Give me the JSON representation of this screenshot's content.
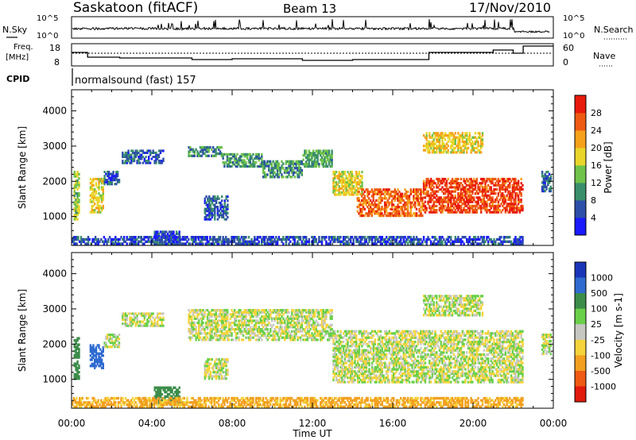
{
  "header": {
    "station": "Saskatoon (fitACF)",
    "beam": "Beam 13",
    "date": "17/Nov/2010"
  },
  "top_panels": {
    "nsky_label": "N.Sky",
    "nsearch_label": "N.Search",
    "noise_ticks_left": [
      "10^5",
      "10^0"
    ],
    "noise_ticks_right": [
      "10^5",
      "10^0"
    ],
    "freq_label": "Freq.",
    "freq_unit": "[MHz]",
    "freq_ticks": [
      "18",
      "8"
    ],
    "nave_label": "Nave",
    "nave_ticks": [
      "60",
      "0"
    ],
    "cpid_label": "CPID",
    "cpid_text": "normalsound (fast) 157"
  },
  "chart_data": [
    {
      "type": "heatmap",
      "title": "",
      "xlabel": "Time UT",
      "ylabel": "Slant Range [km]",
      "x_ticks": [
        "00:00",
        "04:00",
        "08:00",
        "12:00",
        "16:00",
        "20:00",
        "00:00"
      ],
      "y_ticks": [
        "1000",
        "2000",
        "3000",
        "4000"
      ],
      "xlim_hours": [
        0,
        24
      ],
      "ylim_km": [
        180,
        4600
      ],
      "colorbar": {
        "label": "Power [dB]",
        "ticks": [
          "4",
          "8",
          "12",
          "16",
          "20",
          "24",
          "28"
        ],
        "range": [
          0,
          30
        ]
      },
      "bands": [
        {
          "t0": 0.1,
          "t1": 0.4,
          "r0": 900,
          "r1": 2300,
          "v": 14
        },
        {
          "t0": 0.9,
          "t1": 1.6,
          "r0": 1100,
          "r1": 2100,
          "v": 17
        },
        {
          "t0": 1.6,
          "t1": 2.4,
          "r0": 1900,
          "r1": 2300,
          "v": 6
        },
        {
          "t0": 2.5,
          "t1": 4.6,
          "r0": 2500,
          "r1": 2900,
          "v": 6
        },
        {
          "t0": 4.1,
          "t1": 5.4,
          "r0": 200,
          "r1": 600,
          "v": 5
        },
        {
          "t0": 5.8,
          "t1": 7.5,
          "r0": 2700,
          "r1": 3000,
          "v": 9
        },
        {
          "t0": 6.6,
          "t1": 7.8,
          "r0": 900,
          "r1": 1600,
          "v": 6
        },
        {
          "t0": 7.5,
          "t1": 9.5,
          "r0": 2400,
          "r1": 2800,
          "v": 10
        },
        {
          "t0": 9.5,
          "t1": 11.5,
          "r0": 2100,
          "r1": 2600,
          "v": 10
        },
        {
          "t0": 11.5,
          "t1": 13.0,
          "r0": 2400,
          "r1": 2900,
          "v": 11
        },
        {
          "t0": 13.0,
          "t1": 14.5,
          "r0": 1600,
          "r1": 2300,
          "v": 17
        },
        {
          "t0": 14.2,
          "t1": 17.5,
          "r0": 1000,
          "r1": 1800,
          "v": 24
        },
        {
          "t0": 17.5,
          "t1": 22.5,
          "r0": 1100,
          "r1": 2100,
          "v": 26
        },
        {
          "t0": 17.5,
          "t1": 20.5,
          "r0": 2800,
          "r1": 3400,
          "v": 18
        },
        {
          "t0": 0.0,
          "t1": 22.5,
          "r0": 200,
          "r1": 450,
          "v": 5
        },
        {
          "t0": 23.4,
          "t1": 23.9,
          "r0": 1700,
          "r1": 2300,
          "v": 7
        }
      ]
    },
    {
      "type": "heatmap",
      "title": "",
      "xlabel": "Time UT",
      "ylabel": "Slant Range [km]",
      "x_ticks": [
        "00:00",
        "04:00",
        "08:00",
        "12:00",
        "16:00",
        "20:00",
        "00:00"
      ],
      "y_ticks": [
        "1000",
        "2000",
        "3000",
        "4000"
      ],
      "xlim_hours": [
        0,
        24
      ],
      "ylim_km": [
        180,
        4600
      ],
      "colorbar": {
        "label": "Velocity [m s-1]",
        "ticks": [
          "1000",
          "500",
          "100",
          "25",
          "-25",
          "-100",
          "-500",
          "-1000"
        ],
        "range": [
          -1000,
          1000
        ]
      },
      "bands": [
        {
          "t0": 0.1,
          "t1": 0.4,
          "r0": 1000,
          "r1": 2200,
          "v": 300
        },
        {
          "t0": 0.9,
          "t1": 1.6,
          "r0": 1300,
          "r1": 2000,
          "v": 700
        },
        {
          "t0": 1.6,
          "t1": 2.4,
          "r0": 1900,
          "r1": 2300,
          "v": 0
        },
        {
          "t0": 2.5,
          "t1": 4.6,
          "r0": 2500,
          "r1": 2900,
          "v": 0
        },
        {
          "t0": 4.1,
          "t1": 5.4,
          "r0": 300,
          "r1": 800,
          "v": 200
        },
        {
          "t0": 5.8,
          "t1": 13.0,
          "r0": 2100,
          "r1": 3000,
          "v": 0
        },
        {
          "t0": 6.6,
          "t1": 7.8,
          "r0": 1000,
          "r1": 1600,
          "v": 0
        },
        {
          "t0": 13.0,
          "t1": 22.5,
          "r0": 900,
          "r1": 2400,
          "v": 0
        },
        {
          "t0": 17.5,
          "t1": 20.5,
          "r0": 2800,
          "r1": 3400,
          "v": 0
        },
        {
          "t0": 0.0,
          "t1": 22.5,
          "r0": 200,
          "r1": 500,
          "v": -150
        },
        {
          "t0": 23.4,
          "t1": 23.9,
          "r0": 1700,
          "r1": 2300,
          "v": 0
        }
      ]
    }
  ],
  "colors": {
    "power": [
      "#1a1aff",
      "#2e4fa8",
      "#3a8f6a",
      "#6fc24a",
      "#e9d62a",
      "#f6a11a",
      "#ee5a12",
      "#e81a0c"
    ],
    "velocity_pos": [
      "#1a36b8",
      "#2f6bd0",
      "#3c8d4a",
      "#6ad04a"
    ],
    "velocity_zero": "#c7c7c2",
    "velocity_neg": [
      "#f4d43a",
      "#f2a020",
      "#ef5a14",
      "#e11a0c"
    ]
  }
}
